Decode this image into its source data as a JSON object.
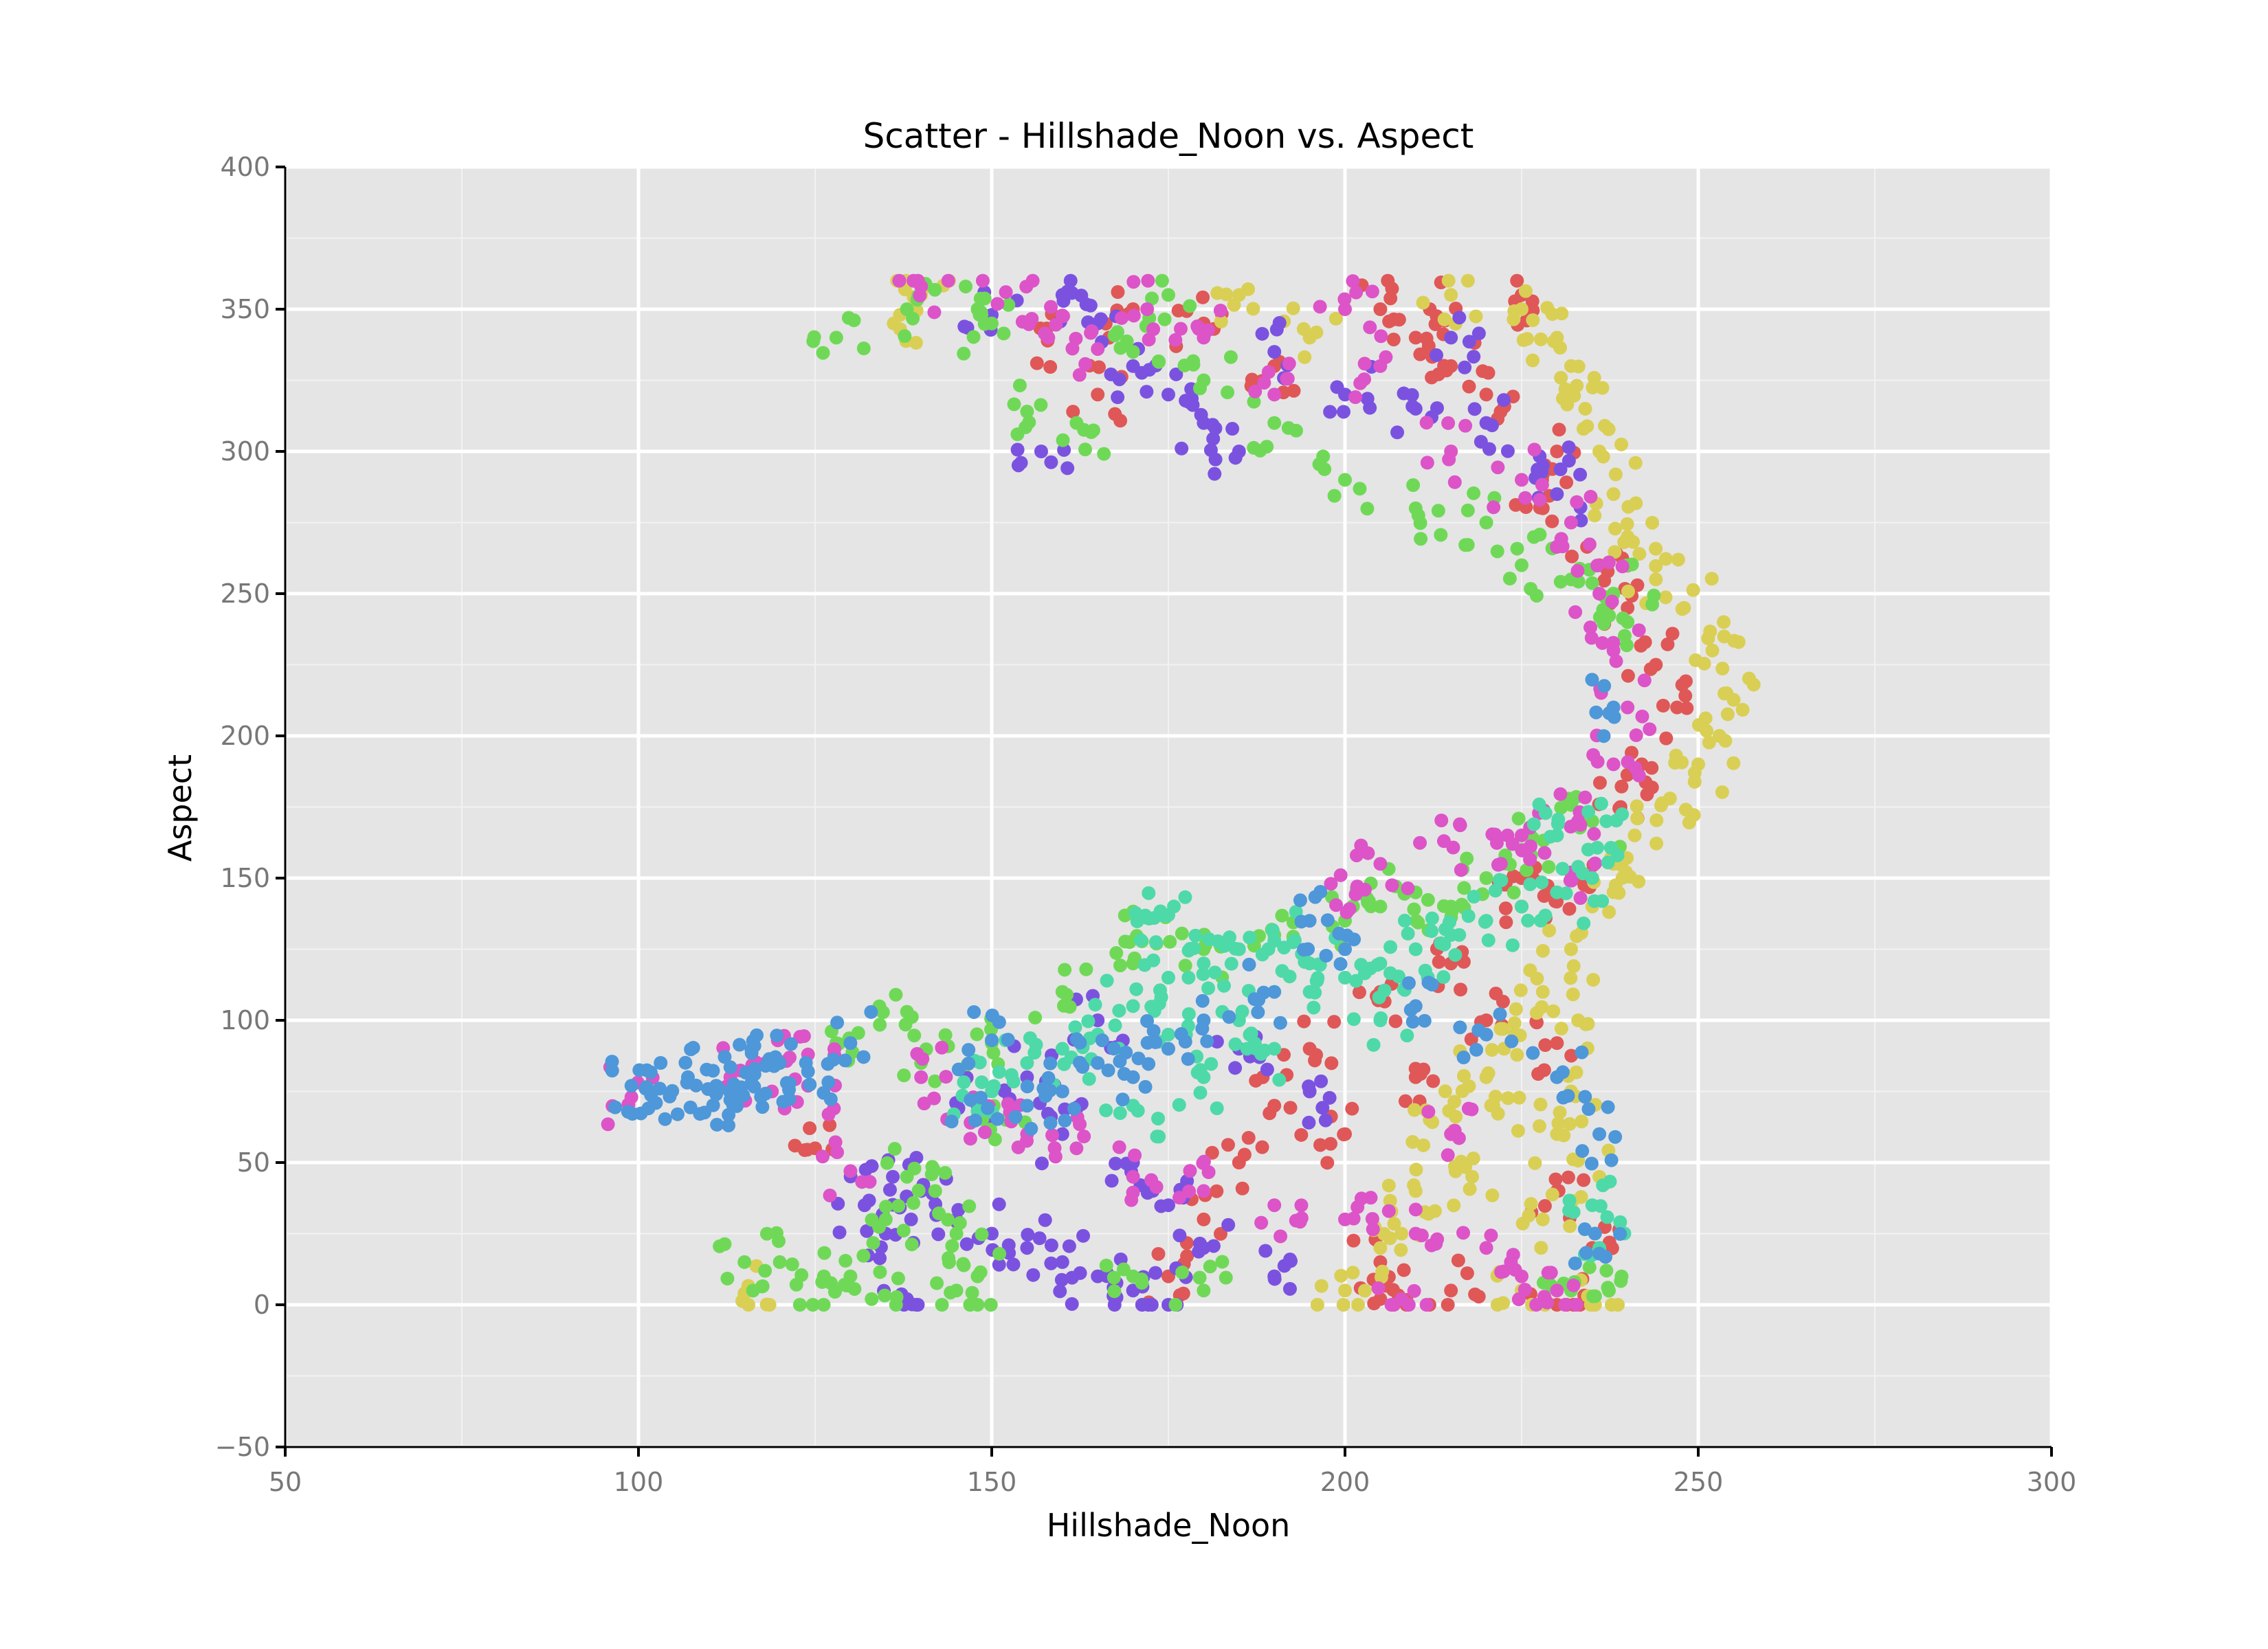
{
  "chart_data": {
    "type": "scatter",
    "title": "Scatter - Hillshade_Noon vs. Aspect",
    "xlabel": "Hillshade_Noon",
    "ylabel": "Aspect",
    "xlim": [
      50,
      300
    ],
    "ylim": [
      -50,
      400
    ],
    "x_ticks": [
      50,
      100,
      150,
      200,
      250,
      300
    ],
    "y_ticks": [
      -50,
      0,
      50,
      100,
      150,
      200,
      250,
      300,
      350,
      400
    ],
    "x_tick_labels": [
      "50",
      "100",
      "150",
      "200",
      "250",
      "300"
    ],
    "y_tick_labels": [
      "−50",
      "0",
      "50",
      "100",
      "150",
      "200",
      "250",
      "300",
      "350",
      "400"
    ],
    "grid": true,
    "legend": "none",
    "background": "#e5e5e5",
    "colors": [
      "#e05757",
      "#d9cf55",
      "#7b52e0",
      "#6fd957",
      "#dc54c8",
      "#4ed9a8",
      "#4e97d9"
    ],
    "series": [
      {
        "color": "#e05757",
        "points": [
          [
            205,
            350
          ],
          [
            210,
            340
          ],
          [
            215,
            330
          ],
          [
            220,
            320
          ],
          [
            225,
            355
          ],
          [
            230,
            300
          ],
          [
            228,
            280
          ],
          [
            236,
            260
          ],
          [
            240,
            245
          ],
          [
            244,
            225
          ],
          [
            247,
            210
          ],
          [
            242,
            190
          ],
          [
            239,
            175
          ],
          [
            233,
            150
          ],
          [
            225,
            140
          ],
          [
            215,
            120
          ],
          [
            205,
            110
          ],
          [
            195,
            90
          ],
          [
            190,
            70
          ],
          [
            185,
            50
          ],
          [
            180,
            30
          ],
          [
            175,
            10
          ],
          [
            200,
            60
          ],
          [
            210,
            80
          ],
          [
            220,
            100
          ],
          [
            230,
            40
          ],
          [
            235,
            20
          ],
          [
            230,
            0
          ],
          [
            215,
            5
          ],
          [
            205,
            15
          ],
          [
            190,
            330
          ],
          [
            180,
            345
          ],
          [
            170,
            350
          ],
          [
            165,
            320
          ],
          [
            158,
            340
          ],
          [
            125,
            55
          ],
          [
            205,
            2
          ],
          [
            230,
            92
          ],
          [
            225,
            150
          ],
          [
            212,
            350
          ]
        ]
      },
      {
        "color": "#d9cf55",
        "points": [
          [
            215,
            355
          ],
          [
            225,
            350
          ],
          [
            230,
            340
          ],
          [
            232,
            330
          ],
          [
            234,
            315
          ],
          [
            236,
            300
          ],
          [
            238,
            285
          ],
          [
            240,
            270
          ],
          [
            244,
            255
          ],
          [
            248,
            245
          ],
          [
            252,
            230
          ],
          [
            254,
            215
          ],
          [
            253,
            200
          ],
          [
            250,
            190
          ],
          [
            246,
            178
          ],
          [
            241,
            165
          ],
          [
            238,
            155
          ],
          [
            235,
            140
          ],
          [
            232,
            125
          ],
          [
            228,
            110
          ],
          [
            224,
            95
          ],
          [
            220,
            80
          ],
          [
            215,
            60
          ],
          [
            210,
            40
          ],
          [
            205,
            20
          ],
          [
            200,
            5
          ],
          [
            225,
            5
          ],
          [
            235,
            0
          ],
          [
            228,
            30
          ],
          [
            218,
            45
          ],
          [
            212,
            65
          ],
          [
            232,
            75
          ],
          [
            236,
            45
          ],
          [
            185,
            355
          ],
          [
            140,
            355
          ],
          [
            137,
            348
          ],
          [
            115,
            4
          ],
          [
            195,
            340
          ],
          [
            221,
            70
          ],
          [
            230,
            60
          ],
          [
            233,
            100
          ],
          [
            208,
            25
          ]
        ]
      },
      {
        "color": "#7b52e0",
        "points": [
          [
            160,
            355
          ],
          [
            165,
            345
          ],
          [
            170,
            330
          ],
          [
            175,
            320
          ],
          [
            180,
            310
          ],
          [
            185,
            300
          ],
          [
            190,
            335
          ],
          [
            200,
            320
          ],
          [
            210,
            315
          ],
          [
            220,
            310
          ],
          [
            228,
            295
          ],
          [
            230,
            285
          ],
          [
            157,
            300
          ],
          [
            132,
            35
          ],
          [
            136,
            45
          ],
          [
            140,
            40
          ],
          [
            145,
            30
          ],
          [
            150,
            25
          ],
          [
            155,
            20
          ],
          [
            160,
            15
          ],
          [
            165,
            10
          ],
          [
            170,
            5
          ],
          [
            175,
            0
          ],
          [
            180,
            20
          ],
          [
            170,
            50
          ],
          [
            160,
            60
          ],
          [
            155,
            80
          ],
          [
            148,
            70
          ],
          [
            138,
            2
          ],
          [
            135,
            25
          ],
          [
            165,
            100
          ],
          [
            185,
            90
          ],
          [
            195,
            75
          ],
          [
            175,
            35
          ],
          [
            190,
            10
          ],
          [
            215,
            340
          ],
          [
            150,
            348
          ]
        ]
      },
      {
        "color": "#6fd957",
        "points": [
          [
            128,
            340
          ],
          [
            138,
            350
          ],
          [
            148,
            350
          ],
          [
            150,
            345
          ],
          [
            155,
            314
          ],
          [
            162,
            310
          ],
          [
            170,
            335
          ],
          [
            175,
            355
          ],
          [
            180,
            325
          ],
          [
            190,
            310
          ],
          [
            200,
            290
          ],
          [
            210,
            280
          ],
          [
            220,
            275
          ],
          [
            225,
            260
          ],
          [
            232,
            255
          ],
          [
            238,
            250
          ],
          [
            240,
            240
          ],
          [
            115,
            15
          ],
          [
            120,
            15
          ],
          [
            126,
            8
          ],
          [
            130,
            10
          ],
          [
            133,
            2
          ],
          [
            135,
            30
          ],
          [
            138,
            45
          ],
          [
            142,
            40
          ],
          [
            145,
            25
          ],
          [
            148,
            10
          ],
          [
            150,
            92
          ],
          [
            152,
            65
          ],
          [
            138,
            103
          ],
          [
            140,
            85
          ],
          [
            160,
            110
          ],
          [
            170,
            120
          ],
          [
            180,
            125
          ],
          [
            190,
            130
          ],
          [
            200,
            135
          ],
          [
            205,
            140
          ],
          [
            210,
            145
          ],
          [
            215,
            140
          ],
          [
            220,
            150
          ],
          [
            225,
            160
          ],
          [
            230,
            165
          ],
          [
            235,
            170
          ],
          [
            170,
            10
          ],
          [
            180,
            5
          ],
          [
            128,
            92
          ],
          [
            232,
            5
          ],
          [
            237,
            12
          ],
          [
            172,
            136
          ],
          [
            145,
            5
          ]
        ]
      },
      {
        "color": "#dc54c8",
        "points": [
          [
            140,
            358
          ],
          [
            152,
            356
          ],
          [
            158,
            340
          ],
          [
            165,
            336
          ],
          [
            172,
            350
          ],
          [
            180,
            340
          ],
          [
            190,
            320
          ],
          [
            200,
            350
          ],
          [
            205,
            330
          ],
          [
            215,
            300
          ],
          [
            225,
            290
          ],
          [
            232,
            275
          ],
          [
            236,
            250
          ],
          [
            238,
            230
          ],
          [
            240,
            210
          ],
          [
            238,
            190
          ],
          [
            233,
            170
          ],
          [
            223,
            165
          ],
          [
            214,
            163
          ],
          [
            205,
            155
          ],
          [
            198,
            148
          ],
          [
            99,
            73
          ],
          [
            113,
            80
          ],
          [
            118,
            85
          ],
          [
            124,
            88
          ],
          [
            124,
            77
          ],
          [
            130,
            47
          ],
          [
            140,
            80
          ],
          [
            147,
            64
          ],
          [
            155,
            60
          ],
          [
            162,
            55
          ],
          [
            170,
            45
          ],
          [
            180,
            40
          ],
          [
            190,
            35
          ],
          [
            200,
            30
          ],
          [
            210,
            25
          ],
          [
            220,
            20
          ],
          [
            225,
            10
          ],
          [
            230,
            5
          ],
          [
            208,
            2
          ],
          [
            215,
            60
          ],
          [
            232,
            152
          ],
          [
            225,
            165
          ]
        ]
      },
      {
        "color": "#4ed9a8",
        "points": [
          [
            165,
            95
          ],
          [
            170,
            105
          ],
          [
            175,
            115
          ],
          [
            180,
            120
          ],
          [
            185,
            125
          ],
          [
            190,
            128
          ],
          [
            195,
            120
          ],
          [
            200,
            115
          ],
          [
            205,
            120
          ],
          [
            210,
            125
          ],
          [
            215,
            130
          ],
          [
            220,
            135
          ],
          [
            225,
            140
          ],
          [
            230,
            145
          ],
          [
            235,
            150
          ],
          [
            160,
            90
          ],
          [
            155,
            85
          ],
          [
            150,
            75
          ],
          [
            148,
            68
          ],
          [
            175,
            95
          ],
          [
            185,
            100
          ],
          [
            195,
            110
          ],
          [
            173,
            136
          ],
          [
            175,
            137
          ],
          [
            170,
            70
          ],
          [
            180,
            80
          ],
          [
            190,
            90
          ],
          [
            205,
            100
          ],
          [
            235,
            35
          ],
          [
            236,
            20
          ],
          [
            230,
            165
          ],
          [
            237,
            170
          ]
        ]
      },
      {
        "color": "#4e97d9",
        "points": [
          [
            99,
            77
          ],
          [
            101,
            76
          ],
          [
            103,
            76
          ],
          [
            107,
            80
          ],
          [
            111,
            77
          ],
          [
            111,
            74
          ],
          [
            113,
            72
          ],
          [
            116,
            78
          ],
          [
            118,
            84
          ],
          [
            120,
            85
          ],
          [
            121,
            78
          ],
          [
            124,
            82
          ],
          [
            130,
            92
          ],
          [
            147,
            72
          ],
          [
            150,
            93
          ],
          [
            155,
            70
          ],
          [
            160,
            75
          ],
          [
            165,
            85
          ],
          [
            170,
            80
          ],
          [
            175,
            90
          ],
          [
            180,
            100
          ],
          [
            190,
            110
          ],
          [
            195,
            135
          ],
          [
            200,
            125
          ],
          [
            210,
            105
          ],
          [
            220,
            95
          ],
          [
            230,
            80
          ],
          [
            236,
            18
          ],
          [
            236,
            60
          ],
          [
            238,
            210
          ]
        ]
      }
    ]
  }
}
